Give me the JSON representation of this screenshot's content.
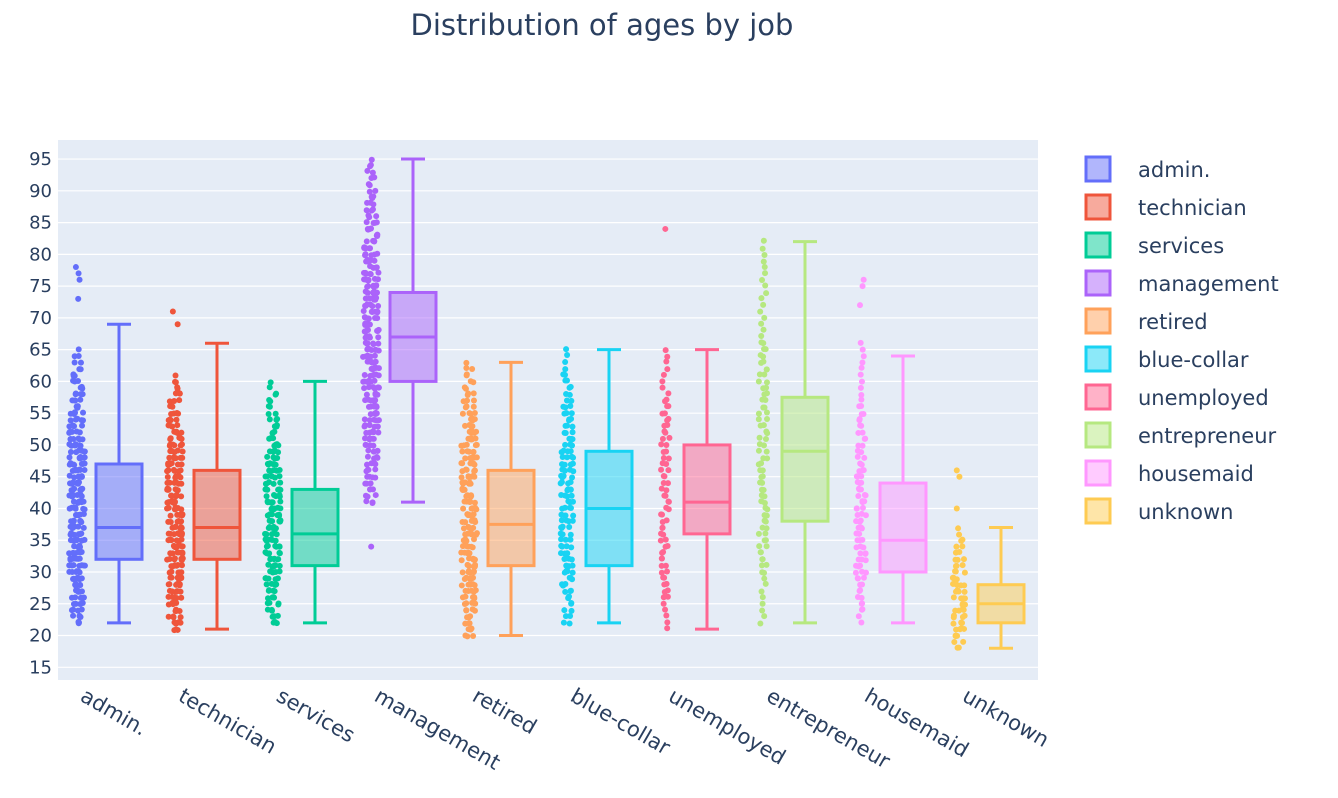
{
  "chart_data": {
    "type": "box",
    "title": "Distribution of ages by job",
    "xlabel": "",
    "ylabel": "",
    "ylim": [
      13,
      98
    ],
    "yticks": [
      15,
      20,
      25,
      30,
      35,
      40,
      45,
      50,
      55,
      60,
      65,
      70,
      75,
      80,
      85,
      90,
      95
    ],
    "grid": true,
    "legend_position": "right",
    "points": "all",
    "categories": [
      "admin.",
      "technician",
      "services",
      "management",
      "retired",
      "blue-collar",
      "unemployed",
      "entrepreneur",
      "housemaid",
      "unknown"
    ],
    "series": [
      {
        "name": "admin.",
        "color": "#636efa",
        "min": 22,
        "q1": 32,
        "median": 37,
        "q3": 47,
        "max": 69,
        "outliers": [
          73,
          76,
          77,
          78
        ],
        "points_range": [
          22,
          65
        ],
        "points_density": 1.0
      },
      {
        "name": "technician",
        "color": "#ef553b",
        "min": 21,
        "q1": 32,
        "median": 37,
        "q3": 46,
        "max": 66,
        "outliers": [
          69,
          71
        ],
        "points_range": [
          21,
          61
        ],
        "points_density": 1.0
      },
      {
        "name": "services",
        "color": "#00cc96",
        "min": 22,
        "q1": 31,
        "median": 36,
        "q3": 43,
        "max": 60,
        "outliers": [],
        "points_range": [
          22,
          60
        ],
        "points_density": 0.8
      },
      {
        "name": "management",
        "color": "#ab63fa",
        "min": 41,
        "q1": 60,
        "median": 67,
        "q3": 74,
        "max": 95,
        "outliers": [
          34
        ],
        "points_range": [
          41,
          95
        ],
        "points_density": 0.9
      },
      {
        "name": "retired",
        "color": "#ffa15a",
        "min": 20,
        "q1": 31,
        "median": 37.5,
        "q3": 46,
        "max": 63,
        "outliers": [],
        "points_range": [
          20,
          63
        ],
        "points_density": 0.9
      },
      {
        "name": "blue-collar",
        "color": "#19d3f3",
        "min": 22,
        "q1": 31,
        "median": 40,
        "q3": 49,
        "max": 65,
        "outliers": [],
        "points_range": [
          22,
          65
        ],
        "points_density": 0.55
      },
      {
        "name": "unemployed",
        "color": "#ff6692",
        "min": 21,
        "q1": 36,
        "median": 41,
        "q3": 50,
        "max": 65,
        "outliers": [
          84
        ],
        "points_range": [
          21,
          65
        ],
        "points_density": 0.35
      },
      {
        "name": "entrepreneur",
        "color": "#b6e880",
        "min": 22,
        "q1": 38,
        "median": 49,
        "q3": 57.5,
        "max": 82,
        "outliers": [],
        "points_range": [
          22,
          82
        ],
        "points_density": 0.3
      },
      {
        "name": "housemaid",
        "color": "#ff97ff",
        "min": 22,
        "q1": 30,
        "median": 35,
        "q3": 44,
        "max": 64,
        "outliers": [
          72,
          75,
          76
        ],
        "points_range": [
          22,
          66
        ],
        "points_density": 0.4
      },
      {
        "name": "unknown",
        "color": "#fecb52",
        "min": 18,
        "q1": 22,
        "median": 25,
        "q3": 28,
        "max": 37,
        "outliers": [
          40,
          45,
          46
        ],
        "points_range": [
          18,
          37
        ],
        "points_density": 0.6
      }
    ]
  }
}
